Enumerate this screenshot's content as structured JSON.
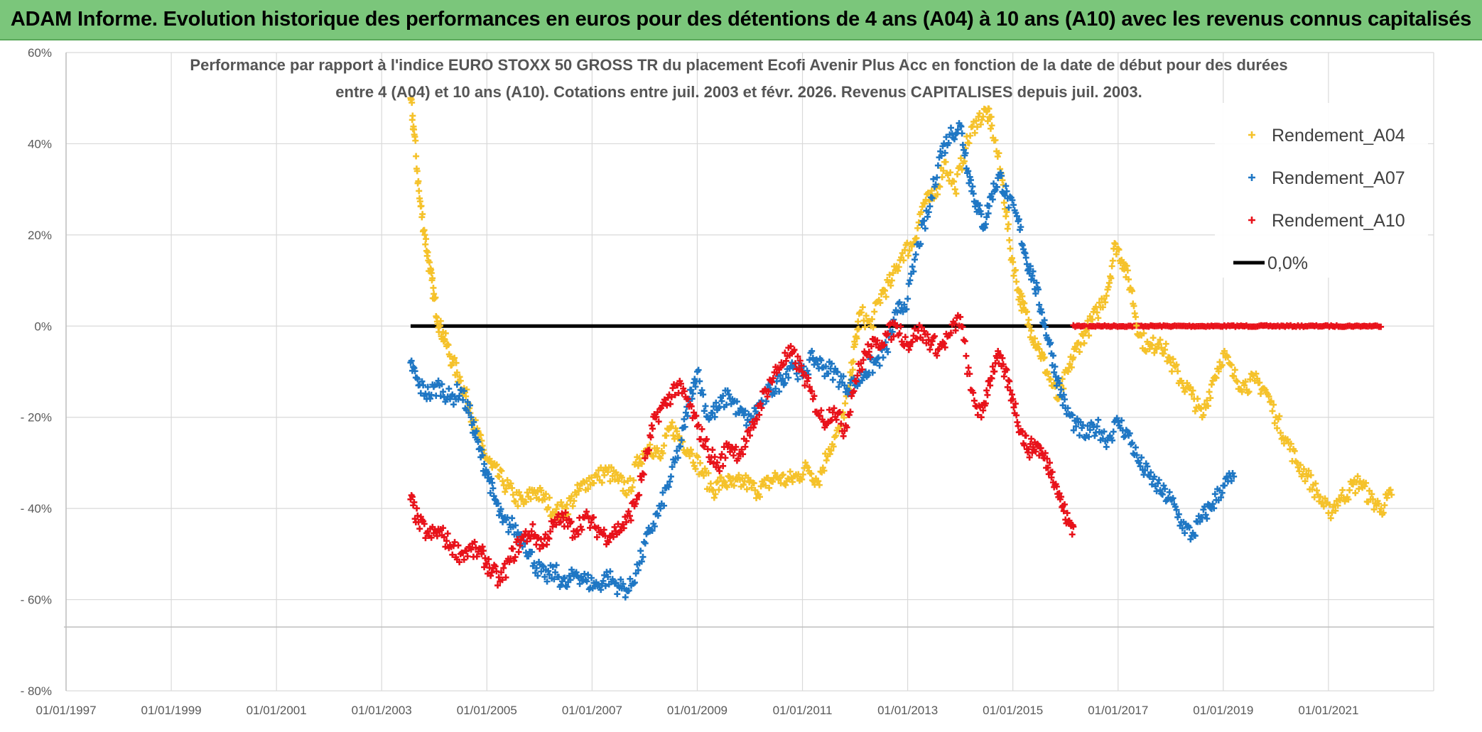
{
  "banner": {
    "title": "ADAM Informe. Evolution historique des performances en euros pour des détentions de 4 ans (A04) à 10 ans (A10) avec les revenus connus capitalisés",
    "background": "#7bc67b"
  },
  "chart_data": {
    "type": "scatter",
    "title_line1": "Performance par rapport à l'indice EURO STOXX 50 GROSS TR  du placement Ecofi Avenir Plus Acc en fonction de la date de début pour des durées",
    "title_line2": "entre 4 (A04) et 10 ans (A10). Cotations entre juil. 2003 et févr. 2026. Revenus CAPITALISES depuis juil. 2003.",
    "xlabel": "",
    "ylabel": "",
    "xlim": [
      1997.0,
      2023.0
    ],
    "ylim": [
      -80,
      60
    ],
    "grid": true,
    "legend_position": "top-right",
    "x_ticks": [
      {
        "value": 1997,
        "label": "01/01/1997"
      },
      {
        "value": 1999,
        "label": "01/01/1999"
      },
      {
        "value": 2001,
        "label": "01/01/2001"
      },
      {
        "value": 2003,
        "label": "01/01/2003"
      },
      {
        "value": 2005,
        "label": "01/01/2005"
      },
      {
        "value": 2007,
        "label": "01/01/2007"
      },
      {
        "value": 2009,
        "label": "01/01/2009"
      },
      {
        "value": 2011,
        "label": "01/01/2011"
      },
      {
        "value": 2013,
        "label": "01/01/2013"
      },
      {
        "value": 2015,
        "label": "01/01/2015"
      },
      {
        "value": 2017,
        "label": "01/01/2017"
      },
      {
        "value": 2019,
        "label": "01/01/2019"
      },
      {
        "value": 2021,
        "label": "01/01/2021"
      }
    ],
    "y_ticks": [
      {
        "value": 60,
        "label": "60%"
      },
      {
        "value": 40,
        "label": "40%"
      },
      {
        "value": 20,
        "label": "20%"
      },
      {
        "value": 0,
        "label": "0%"
      },
      {
        "value": -20,
        "label": "- 20%"
      },
      {
        "value": -40,
        "label": "- 40%"
      },
      {
        "value": -60,
        "label": "- 60%"
      },
      {
        "value": -80,
        "label": "- 80%"
      }
    ],
    "series": [
      {
        "name": "Rendement_A04",
        "color": "#f5c22b",
        "marker": "+",
        "points": [
          [
            2003.55,
            50
          ],
          [
            2003.62,
            42
          ],
          [
            2003.72,
            28
          ],
          [
            2003.82,
            20
          ],
          [
            2003.92,
            12
          ],
          [
            2004.0,
            6
          ],
          [
            2004.1,
            0
          ],
          [
            2004.2,
            -3
          ],
          [
            2004.35,
            -8
          ],
          [
            2004.5,
            -12
          ],
          [
            2004.65,
            -17
          ],
          [
            2004.8,
            -23
          ],
          [
            2004.95,
            -28
          ],
          [
            2005.1,
            -31
          ],
          [
            2005.3,
            -34
          ],
          [
            2005.5,
            -37
          ],
          [
            2005.7,
            -39
          ],
          [
            2005.9,
            -36
          ],
          [
            2006.1,
            -38
          ],
          [
            2006.3,
            -41
          ],
          [
            2006.5,
            -40
          ],
          [
            2006.7,
            -37
          ],
          [
            2006.9,
            -34
          ],
          [
            2007.1,
            -33
          ],
          [
            2007.3,
            -32
          ],
          [
            2007.5,
            -34
          ],
          [
            2007.7,
            -36
          ],
          [
            2007.9,
            -29
          ],
          [
            2008.1,
            -26
          ],
          [
            2008.3,
            -29
          ],
          [
            2008.5,
            -22
          ],
          [
            2008.7,
            -25
          ],
          [
            2008.9,
            -28
          ],
          [
            2009.1,
            -32
          ],
          [
            2009.3,
            -36
          ],
          [
            2009.5,
            -34
          ],
          [
            2009.7,
            -35
          ],
          [
            2009.9,
            -34
          ],
          [
            2010.1,
            -36
          ],
          [
            2010.3,
            -35
          ],
          [
            2010.5,
            -33
          ],
          [
            2010.7,
            -34
          ],
          [
            2010.9,
            -33
          ],
          [
            2011.1,
            -31
          ],
          [
            2011.3,
            -34
          ],
          [
            2011.5,
            -27
          ],
          [
            2011.7,
            -23
          ],
          [
            2011.9,
            -13
          ],
          [
            2012.0,
            -4
          ],
          [
            2012.1,
            3
          ],
          [
            2012.3,
            0
          ],
          [
            2012.5,
            7
          ],
          [
            2012.7,
            10
          ],
          [
            2012.9,
            16
          ],
          [
            2013.1,
            18
          ],
          [
            2013.3,
            27
          ],
          [
            2013.5,
            28
          ],
          [
            2013.7,
            36
          ],
          [
            2013.9,
            30
          ],
          [
            2014.1,
            39
          ],
          [
            2014.3,
            45
          ],
          [
            2014.5,
            47
          ],
          [
            2014.6,
            44
          ],
          [
            2014.8,
            32
          ],
          [
            2014.95,
            17
          ],
          [
            2015.1,
            8
          ],
          [
            2015.2,
            4
          ],
          [
            2015.35,
            -1
          ],
          [
            2015.5,
            -5
          ],
          [
            2015.65,
            -10
          ],
          [
            2015.85,
            -16
          ],
          [
            2016.05,
            -10
          ],
          [
            2016.2,
            -5
          ],
          [
            2016.4,
            -1
          ],
          [
            2016.6,
            3
          ],
          [
            2016.8,
            8
          ],
          [
            2016.95,
            18
          ],
          [
            2017.1,
            14
          ],
          [
            2017.25,
            8
          ],
          [
            2017.4,
            -2
          ],
          [
            2017.6,
            -5
          ],
          [
            2017.8,
            -3
          ],
          [
            2018.0,
            -8
          ],
          [
            2018.2,
            -12
          ],
          [
            2018.4,
            -15
          ],
          [
            2018.6,
            -20
          ],
          [
            2018.8,
            -12
          ],
          [
            2019.0,
            -6
          ],
          [
            2019.2,
            -11
          ],
          [
            2019.4,
            -13
          ],
          [
            2019.6,
            -12
          ],
          [
            2019.8,
            -14
          ],
          [
            2020.0,
            -20
          ],
          [
            2020.2,
            -25
          ],
          [
            2020.4,
            -30
          ],
          [
            2020.6,
            -33
          ],
          [
            2020.8,
            -37
          ],
          [
            2021.0,
            -41
          ],
          [
            2021.2,
            -38
          ],
          [
            2021.4,
            -36
          ],
          [
            2021.6,
            -34
          ],
          [
            2021.8,
            -38
          ],
          [
            2022.0,
            -40
          ],
          [
            2022.2,
            -37
          ]
        ]
      },
      {
        "name": "Rendement_A07",
        "color": "#1f77c4",
        "marker": "+",
        "points": [
          [
            2003.55,
            -8
          ],
          [
            2003.7,
            -13
          ],
          [
            2003.9,
            -15
          ],
          [
            2004.1,
            -13
          ],
          [
            2004.3,
            -16
          ],
          [
            2004.5,
            -14
          ],
          [
            2004.7,
            -20
          ],
          [
            2004.85,
            -27
          ],
          [
            2005.0,
            -32
          ],
          [
            2005.15,
            -38
          ],
          [
            2005.3,
            -43
          ],
          [
            2005.5,
            -44
          ],
          [
            2005.7,
            -47
          ],
          [
            2005.9,
            -52
          ],
          [
            2006.1,
            -55
          ],
          [
            2006.3,
            -54
          ],
          [
            2006.5,
            -57
          ],
          [
            2006.7,
            -54
          ],
          [
            2006.9,
            -56
          ],
          [
            2007.1,
            -57
          ],
          [
            2007.3,
            -55
          ],
          [
            2007.5,
            -57
          ],
          [
            2007.7,
            -58
          ],
          [
            2007.9,
            -52
          ],
          [
            2008.1,
            -45
          ],
          [
            2008.3,
            -40
          ],
          [
            2008.5,
            -33
          ],
          [
            2008.7,
            -25
          ],
          [
            2008.85,
            -16
          ],
          [
            2009.0,
            -10
          ],
          [
            2009.2,
            -20
          ],
          [
            2009.4,
            -18
          ],
          [
            2009.6,
            -15
          ],
          [
            2009.8,
            -19
          ],
          [
            2010.0,
            -21
          ],
          [
            2010.2,
            -17
          ],
          [
            2010.4,
            -14
          ],
          [
            2010.6,
            -12
          ],
          [
            2010.8,
            -8
          ],
          [
            2011.0,
            -11
          ],
          [
            2011.2,
            -7
          ],
          [
            2011.4,
            -9
          ],
          [
            2011.6,
            -10
          ],
          [
            2011.8,
            -13
          ],
          [
            2012.0,
            -13
          ],
          [
            2012.2,
            -10
          ],
          [
            2012.4,
            -8
          ],
          [
            2012.6,
            -5
          ],
          [
            2012.8,
            3
          ],
          [
            2013.0,
            6
          ],
          [
            2013.2,
            18
          ],
          [
            2013.4,
            25
          ],
          [
            2013.6,
            37
          ],
          [
            2013.8,
            42
          ],
          [
            2014.0,
            44
          ],
          [
            2014.15,
            34
          ],
          [
            2014.3,
            27
          ],
          [
            2014.45,
            22
          ],
          [
            2014.6,
            29
          ],
          [
            2014.75,
            33
          ],
          [
            2014.9,
            28
          ],
          [
            2015.1,
            23
          ],
          [
            2015.25,
            15
          ],
          [
            2015.4,
            10
          ],
          [
            2015.55,
            3
          ],
          [
            2015.7,
            -4
          ],
          [
            2015.85,
            -12
          ],
          [
            2016.0,
            -18
          ],
          [
            2016.2,
            -22
          ],
          [
            2016.4,
            -24
          ],
          [
            2016.6,
            -22
          ],
          [
            2016.8,
            -25
          ],
          [
            2017.0,
            -21
          ],
          [
            2017.2,
            -24
          ],
          [
            2017.4,
            -30
          ],
          [
            2017.6,
            -33
          ],
          [
            2017.8,
            -36
          ],
          [
            2018.0,
            -38
          ],
          [
            2018.2,
            -43
          ],
          [
            2018.4,
            -46
          ],
          [
            2018.6,
            -42
          ],
          [
            2018.8,
            -39
          ],
          [
            2019.0,
            -35
          ],
          [
            2019.2,
            -33
          ]
        ]
      },
      {
        "name": "Rendement_A10",
        "color": "#e8121a",
        "marker": "+",
        "points": [
          [
            2003.55,
            -38
          ],
          [
            2003.7,
            -43
          ],
          [
            2003.9,
            -46
          ],
          [
            2004.1,
            -45
          ],
          [
            2004.3,
            -48
          ],
          [
            2004.5,
            -50
          ],
          [
            2004.7,
            -49
          ],
          [
            2004.9,
            -50
          ],
          [
            2005.05,
            -53
          ],
          [
            2005.25,
            -56
          ],
          [
            2005.45,
            -51
          ],
          [
            2005.65,
            -47
          ],
          [
            2005.85,
            -45
          ],
          [
            2006.05,
            -48
          ],
          [
            2006.25,
            -44
          ],
          [
            2006.45,
            -42
          ],
          [
            2006.65,
            -45
          ],
          [
            2006.85,
            -42
          ],
          [
            2007.05,
            -44
          ],
          [
            2007.25,
            -46
          ],
          [
            2007.45,
            -45
          ],
          [
            2007.65,
            -43
          ],
          [
            2007.85,
            -38
          ],
          [
            2008.05,
            -28
          ],
          [
            2008.2,
            -20
          ],
          [
            2008.4,
            -17
          ],
          [
            2008.6,
            -13
          ],
          [
            2008.8,
            -16
          ],
          [
            2009.0,
            -22
          ],
          [
            2009.2,
            -27
          ],
          [
            2009.4,
            -31
          ],
          [
            2009.6,
            -26
          ],
          [
            2009.8,
            -28
          ],
          [
            2010.0,
            -24
          ],
          [
            2010.2,
            -17
          ],
          [
            2010.4,
            -12
          ],
          [
            2010.6,
            -8
          ],
          [
            2010.8,
            -6
          ],
          [
            2011.0,
            -10
          ],
          [
            2011.2,
            -16
          ],
          [
            2011.4,
            -21
          ],
          [
            2011.6,
            -18
          ],
          [
            2011.8,
            -23
          ],
          [
            2012.0,
            -12
          ],
          [
            2012.2,
            -6
          ],
          [
            2012.4,
            -4
          ],
          [
            2012.6,
            -2
          ],
          [
            2012.8,
            0
          ],
          [
            2013.0,
            -4
          ],
          [
            2013.2,
            -1
          ],
          [
            2013.4,
            -3
          ],
          [
            2013.6,
            -5
          ],
          [
            2013.8,
            -2
          ],
          [
            2014.0,
            2
          ],
          [
            2014.2,
            -14
          ],
          [
            2014.4,
            -20
          ],
          [
            2014.55,
            -12
          ],
          [
            2014.7,
            -7
          ],
          [
            2014.85,
            -10
          ],
          [
            2015.0,
            -16
          ],
          [
            2015.15,
            -23
          ],
          [
            2015.3,
            -27
          ],
          [
            2015.45,
            -26
          ],
          [
            2015.6,
            -29
          ],
          [
            2015.75,
            -32
          ],
          [
            2015.9,
            -38
          ],
          [
            2016.05,
            -43
          ],
          [
            2016.15,
            -44
          ]
        ]
      }
    ],
    "zero_line": {
      "name": "0,0%",
      "from": 2003.55,
      "to": 2016.15,
      "color": "#000000"
    },
    "red_zero_band": {
      "from": 2016.15,
      "to": 2022.0,
      "color": "#e8121a"
    },
    "legend": [
      {
        "label": "Rendement_A04",
        "color": "#f5c22b",
        "marker": "+"
      },
      {
        "label": "Rendement_A07",
        "color": "#1f77c4",
        "marker": "+"
      },
      {
        "label": "Rendement_A10",
        "color": "#e8121a",
        "marker": "+"
      },
      {
        "label": "0,0%",
        "color": "#000000",
        "marker": "line"
      }
    ]
  }
}
